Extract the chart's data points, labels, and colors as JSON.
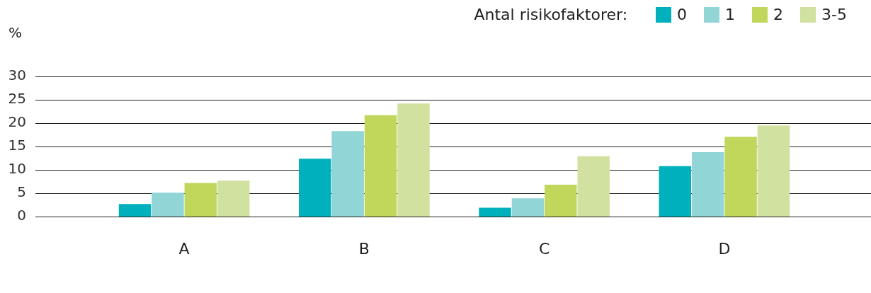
{
  "chart_data": {
    "type": "bar",
    "ylabel": "%",
    "legend_title": "Antal risikofaktorer:",
    "categories": [
      "A",
      "B",
      "C",
      "D"
    ],
    "series": [
      {
        "name": "0",
        "color": "#00b0bd",
        "values": [
          2.7,
          12.4,
          1.9,
          10.8
        ]
      },
      {
        "name": "1",
        "color": "#92d5d7",
        "values": [
          5.1,
          18.3,
          3.9,
          13.8
        ]
      },
      {
        "name": "2",
        "color": "#c0d75c",
        "values": [
          7.2,
          21.7,
          6.8,
          17.1
        ]
      },
      {
        "name": "3-5",
        "color": "#d0e1a0",
        "values": [
          7.7,
          24.2,
          12.9,
          19.5
        ]
      }
    ],
    "ylim": [
      0,
      30
    ],
    "yticks": [
      0,
      5,
      10,
      15,
      20,
      25,
      30
    ],
    "grid": "y",
    "legend": "top right"
  }
}
